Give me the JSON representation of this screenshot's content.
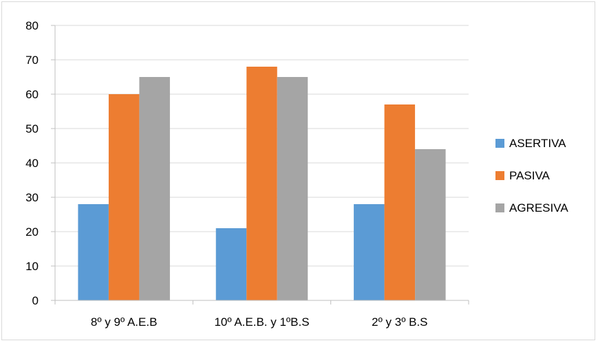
{
  "chart_data": {
    "type": "bar",
    "title": "",
    "xlabel": "",
    "ylabel": "",
    "categories": [
      "8º y 9º A.E.B",
      "10º A.E.B. y 1ºB.S",
      "2º y 3º B.S"
    ],
    "series": [
      {
        "name": "ASERTIVA",
        "values": [
          28,
          21,
          28
        ],
        "color": "#5B9BD5"
      },
      {
        "name": "PASIVA",
        "values": [
          60,
          68,
          57
        ],
        "color": "#ED7D31"
      },
      {
        "name": "AGRESIVA",
        "values": [
          65,
          65,
          44
        ],
        "color": "#A5A5A5"
      }
    ],
    "ylim": [
      0,
      80
    ],
    "yticks": [
      0,
      10,
      20,
      30,
      40,
      50,
      60,
      70,
      80
    ],
    "grid": true,
    "legend_position": "right"
  }
}
